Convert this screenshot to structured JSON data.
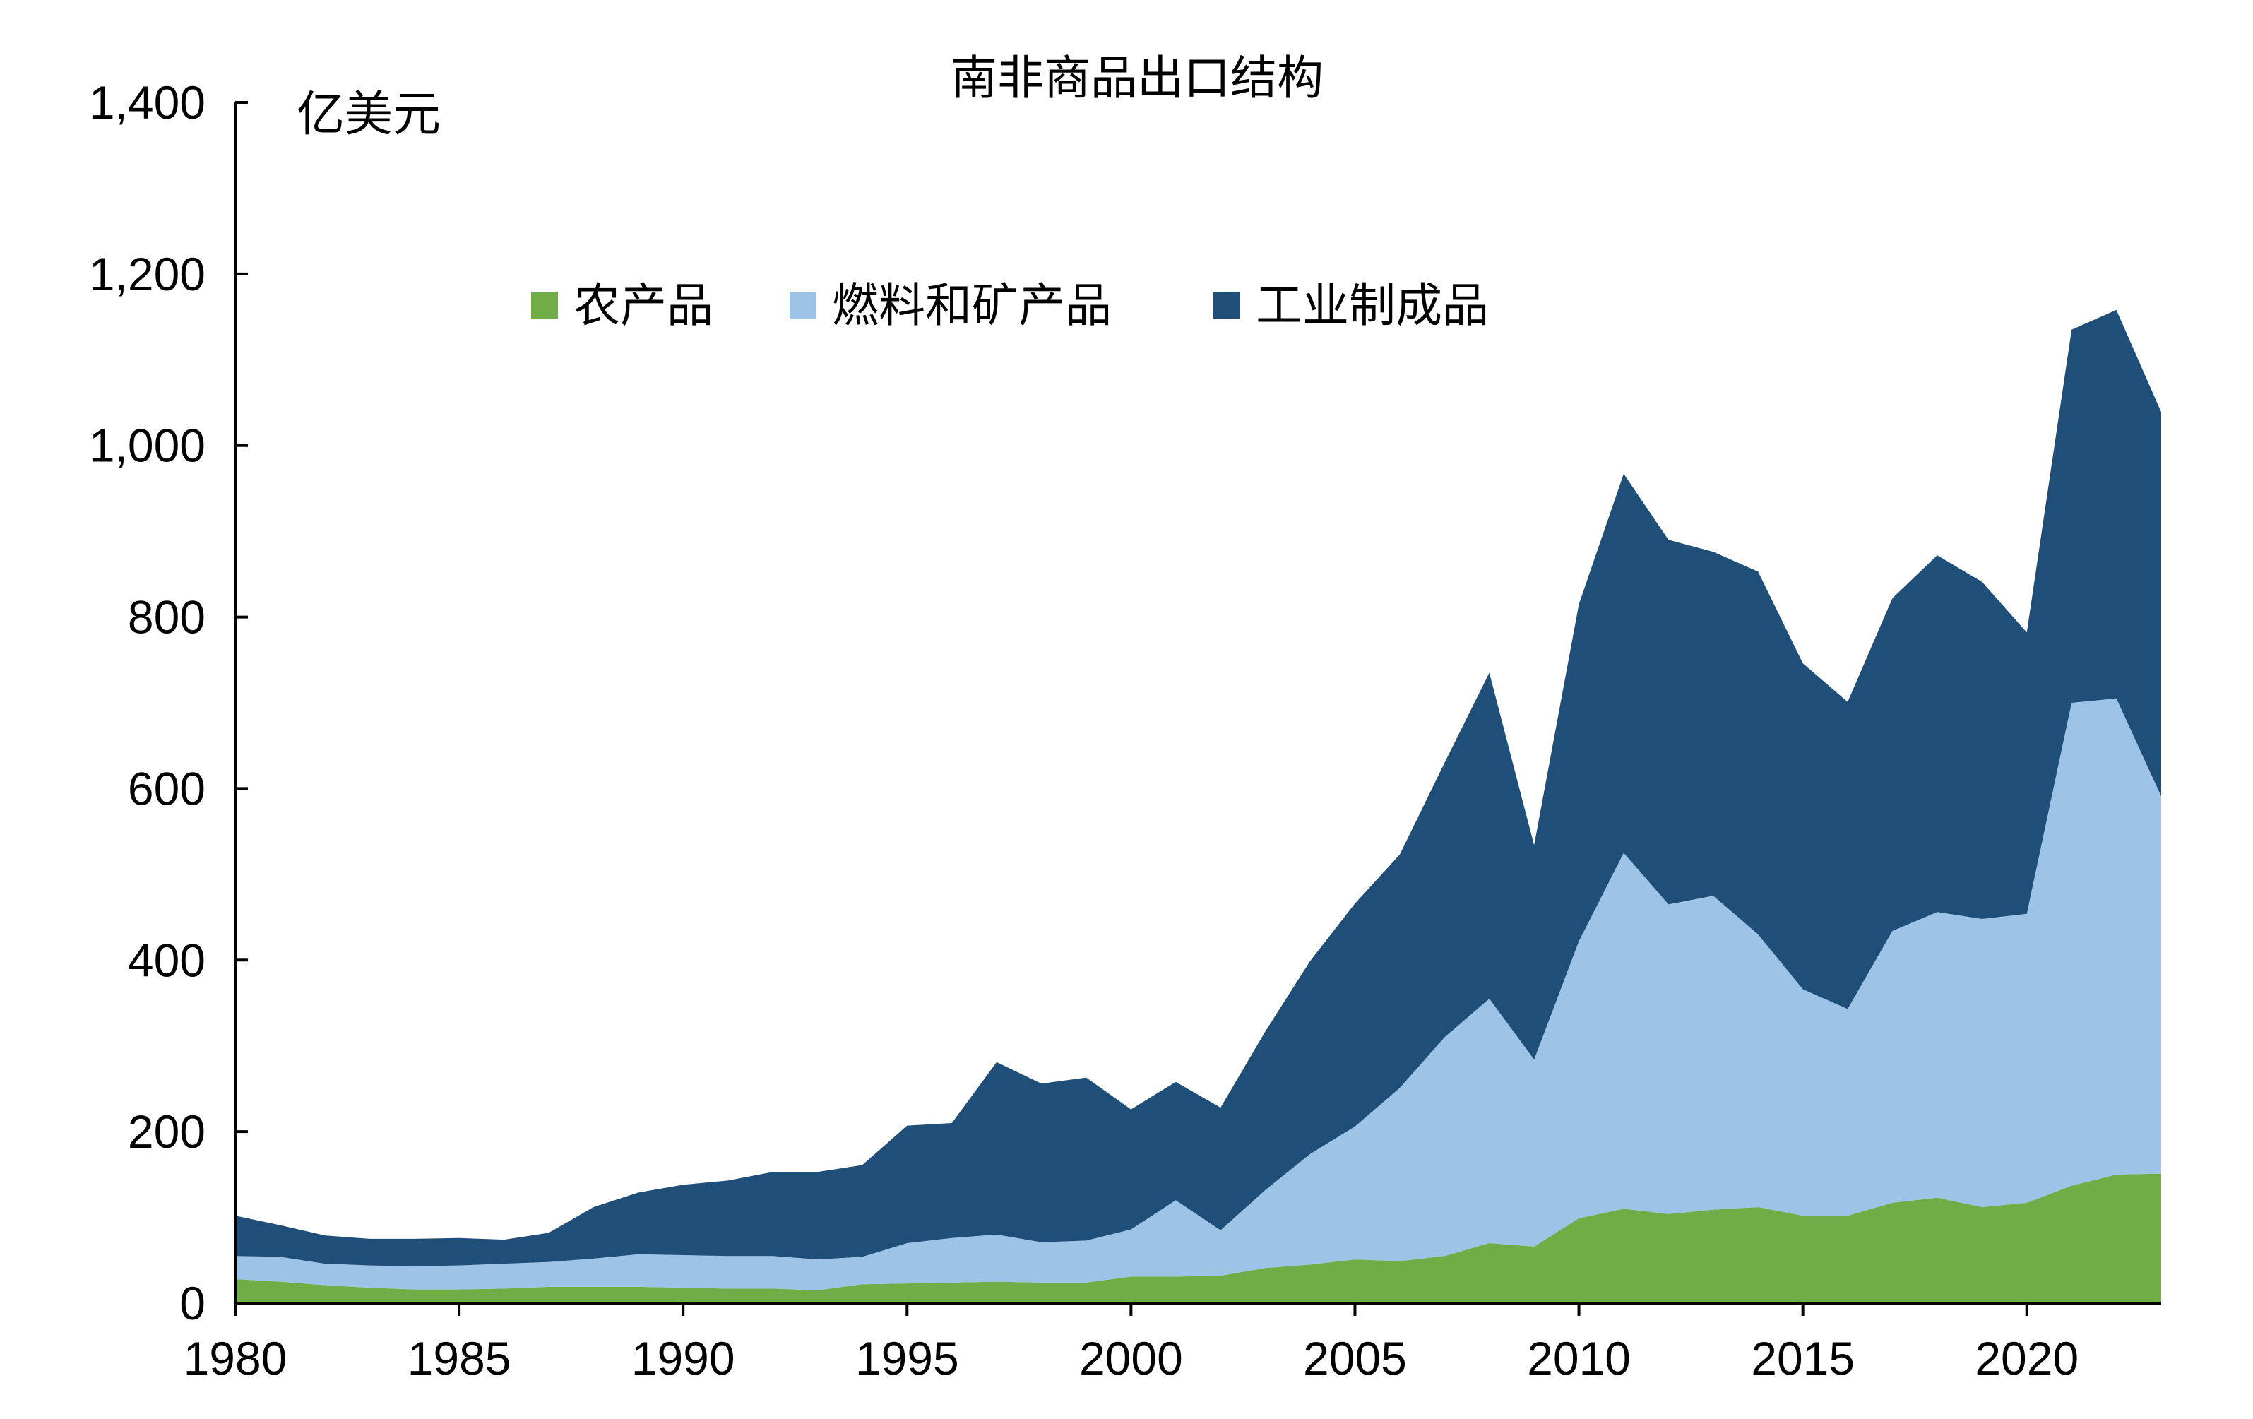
{
  "chart_data": {
    "type": "area",
    "stacked": true,
    "title": "南非商品出口结构",
    "ylabel": "亿美元",
    "xlabel": "",
    "ylim": [
      0,
      1400
    ],
    "xlim": [
      1980,
      2023
    ],
    "yticks": [
      0,
      200,
      400,
      600,
      800,
      1000,
      1200,
      1400
    ],
    "ytick_labels": [
      "0",
      "200",
      "400",
      "600",
      "800",
      "1,000",
      "1,200",
      "1,400"
    ],
    "xticks": [
      1980,
      1985,
      1990,
      1995,
      2000,
      2005,
      2010,
      2015,
      2020
    ],
    "xtick_labels": [
      "1980",
      "1985",
      "1990",
      "1995",
      "2000",
      "2005",
      "2010",
      "2015",
      "2020"
    ],
    "grid": false,
    "legend_position": "top-center",
    "x": [
      1980,
      1981,
      1982,
      1983,
      1984,
      1985,
      1986,
      1987,
      1988,
      1989,
      1990,
      1991,
      1992,
      1993,
      1994,
      1995,
      1996,
      1997,
      1998,
      1999,
      2000,
      2001,
      2002,
      2003,
      2004,
      2005,
      2006,
      2007,
      2008,
      2009,
      2010,
      2011,
      2012,
      2013,
      2014,
      2015,
      2016,
      2017,
      2018,
      2019,
      2020,
      2021,
      2022,
      2023
    ],
    "series": [
      {
        "name": "农产品",
        "color": "#70AD47",
        "values": [
          28,
          25,
          21,
          18,
          16,
          16,
          17,
          19,
          19,
          19,
          18,
          17,
          17,
          15,
          22,
          23,
          24,
          25,
          24,
          24,
          31,
          31,
          32,
          41,
          45,
          51,
          49,
          55,
          70,
          66,
          99,
          110,
          104,
          109,
          112,
          102,
          102,
          117,
          123,
          112,
          117,
          137,
          150,
          151
        ]
      },
      {
        "name": "燃料和矿产品",
        "color": "#9DC3E6",
        "values": [
          27,
          29,
          25,
          26,
          27,
          28,
          29,
          29,
          33,
          38,
          38,
          38,
          38,
          36,
          32,
          47,
          52,
          55,
          47,
          49,
          55,
          89,
          53,
          91,
          129,
          155,
          202,
          255,
          285,
          218,
          323,
          415,
          361,
          366,
          318,
          264,
          241,
          317,
          333,
          336,
          337,
          563,
          555,
          440
        ]
      },
      {
        "name": "工业制成品",
        "color": "#1F4E79",
        "values": [
          47,
          37,
          33,
          31,
          32,
          32,
          28,
          34,
          60,
          72,
          82,
          88,
          98,
          102,
          107,
          137,
          134,
          201,
          185,
          190,
          140,
          138,
          143,
          185,
          225,
          260,
          272,
          320,
          380,
          250,
          393,
          442,
          425,
          401,
          423,
          380,
          358,
          388,
          416,
          393,
          328,
          435,
          453,
          448
        ]
      }
    ]
  }
}
